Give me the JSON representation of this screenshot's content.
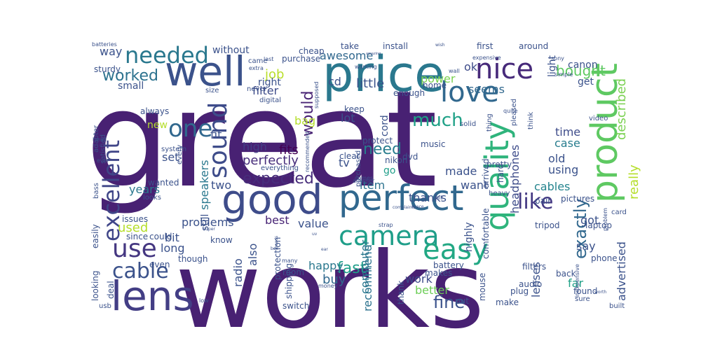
{
  "word_cloud": {
    "colors": [
      "#482173",
      "#443a83",
      "#3e4c8a",
      "#31688e",
      "#26828e",
      "#1f9e89",
      "#35b779",
      "#6ece58",
      "#b5de2b",
      "#fde725"
    ],
    "words": [
      {
        "text": "great",
        "color": "#482173"
      },
      {
        "text": "works",
        "color": "#482173"
      },
      {
        "text": "good",
        "color": "#3e4c8a"
      },
      {
        "text": "price",
        "color": "#2a788e"
      },
      {
        "text": "well",
        "color": "#3b528b"
      },
      {
        "text": "product",
        "color": "#5ec962"
      },
      {
        "text": "quality",
        "color": "#2fb47c"
      },
      {
        "text": "perfect",
        "color": "#31688e"
      },
      {
        "text": "lens",
        "color": "#433e85"
      },
      {
        "text": "nice",
        "color": "#472a7a"
      },
      {
        "text": "camera",
        "color": "#1f9e89"
      },
      {
        "text": "easy",
        "color": "#22a884"
      },
      {
        "text": "love",
        "color": "#31688e"
      },
      {
        "text": "needed",
        "color": "#2a788e"
      },
      {
        "text": "excellent",
        "color": "#404688"
      },
      {
        "text": "sound",
        "color": "#3e4c8a"
      },
      {
        "text": "one",
        "color": "#31688e"
      },
      {
        "text": "like",
        "color": "#443983"
      },
      {
        "text": "use",
        "color": "#453781"
      },
      {
        "text": "cable",
        "color": "#3b528b"
      },
      {
        "text": "worked",
        "color": "#2c728e"
      },
      {
        "text": "much",
        "color": "#1fa187"
      },
      {
        "text": "expected",
        "color": "#472d7b"
      },
      {
        "text": "bought",
        "color": "#5ec962"
      },
      {
        "text": "exactly",
        "color": "#31688e"
      },
      {
        "text": "fine",
        "color": "#3b528b"
      },
      {
        "text": "fast",
        "color": "#1f9e89"
      },
      {
        "text": "need",
        "color": "#287d8e"
      },
      {
        "text": "would",
        "color": "#482374"
      },
      {
        "text": "described",
        "color": "#7ad151"
      },
      {
        "text": "really",
        "color": "#b5de2b"
      },
      {
        "text": "advertised",
        "color": "#3b528b"
      },
      {
        "text": "recommend",
        "color": "#2c728e"
      },
      {
        "text": "computer",
        "color": "#2a788e"
      },
      {
        "text": "headphones",
        "color": "#3e4c8a"
      },
      {
        "text": "lenses",
        "color": "#3b528b"
      },
      {
        "text": "speakers",
        "color": "#2a788e"
      },
      {
        "text": "fits",
        "color": "#440154"
      },
      {
        "text": "perfectly",
        "color": "#472d7b"
      },
      {
        "text": "high",
        "color": "#433e85"
      },
      {
        "text": "filter",
        "color": "#3e4c8a"
      },
      {
        "text": "little",
        "color": "#3b528b"
      },
      {
        "text": "job",
        "color": "#b8de29"
      },
      {
        "text": "using",
        "color": "#3b528b"
      },
      {
        "text": "case",
        "color": "#287d8e"
      },
      {
        "text": "time",
        "color": "#3e4c8a"
      },
      {
        "text": "made",
        "color": "#3b528b"
      },
      {
        "text": "cables",
        "color": "#25848e"
      },
      {
        "text": "used",
        "color": "#b5de2b"
      },
      {
        "text": "years",
        "color": "#2a788e"
      },
      {
        "text": "long",
        "color": "#3b528b"
      },
      {
        "text": "best",
        "color": "#482475"
      },
      {
        "text": "value",
        "color": "#3b528b"
      },
      {
        "text": "buy",
        "color": "#31688e"
      },
      {
        "text": "work",
        "color": "#3e4c8a"
      },
      {
        "text": "better",
        "color": "#6ece58"
      },
      {
        "text": "happy",
        "color": "#2a788e"
      },
      {
        "text": "thanks",
        "color": "#3b528b"
      },
      {
        "text": "want",
        "color": "#3b528b"
      },
      {
        "text": "item",
        "color": "#2c728e"
      },
      {
        "text": "got",
        "color": "#3b528b"
      },
      {
        "text": "say",
        "color": "#3b528b"
      },
      {
        "text": "far",
        "color": "#1fa187"
      },
      {
        "text": "old",
        "color": "#3b528b"
      },
      {
        "text": "fit",
        "color": "#3b528b"
      },
      {
        "text": "problems",
        "color": "#3b528b"
      },
      {
        "text": "small",
        "color": "#3b528b"
      },
      {
        "text": "seems",
        "color": "#31688e"
      },
      {
        "text": "power",
        "color": "#7ad151"
      },
      {
        "text": "awesome",
        "color": "#31688e"
      },
      {
        "text": "ok",
        "color": "#3e4c8a"
      },
      {
        "text": "tv",
        "color": "#3b528b"
      },
      {
        "text": "lot",
        "color": "#3b528b"
      },
      {
        "text": "bit",
        "color": "#3b528b"
      },
      {
        "text": "set",
        "color": "#3b528b"
      },
      {
        "text": "new",
        "color": "#b5de2b"
      },
      {
        "text": "two",
        "color": "#3b528b"
      },
      {
        "text": "still",
        "color": "#3b528b"
      },
      {
        "text": "also",
        "color": "#3b528b"
      },
      {
        "text": "radio",
        "color": "#3b528b"
      },
      {
        "text": "go",
        "color": "#1f9e89"
      },
      {
        "text": "cd",
        "color": "#3b528b"
      },
      {
        "text": "bag",
        "color": "#b5de2b"
      },
      {
        "text": "cord",
        "color": "#3b528b"
      },
      {
        "text": "right",
        "color": "#3b528b"
      },
      {
        "text": "without",
        "color": "#3b528b"
      },
      {
        "text": "way",
        "color": "#3b528b"
      },
      {
        "text": "canon",
        "color": "#3b528b"
      },
      {
        "text": "get",
        "color": "#3b528b"
      },
      {
        "text": "light",
        "color": "#3b528b"
      },
      {
        "text": "highly",
        "color": "#3b528b"
      },
      {
        "text": "tripod",
        "color": "#3b528b"
      },
      {
        "text": "laptop",
        "color": "#3b528b"
      },
      {
        "text": "comfortable",
        "color": "#3b528b"
      },
      {
        "text": "battery",
        "color": "#3b528b"
      },
      {
        "text": "protection",
        "color": "#3b528b"
      },
      {
        "text": "room",
        "color": "#3b528b"
      },
      {
        "text": "mouse",
        "color": "#3b528b"
      },
      {
        "text": "audio",
        "color": "#3b528b"
      },
      {
        "text": "plug",
        "color": "#3b528b"
      },
      {
        "text": "filters",
        "color": "#3b528b"
      },
      {
        "text": "back",
        "color": "#3b528b"
      },
      {
        "text": "phone",
        "color": "#3b528b"
      },
      {
        "text": "found",
        "color": "#3b528b"
      },
      {
        "text": "issues",
        "color": "#3b528b"
      },
      {
        "text": "since",
        "color": "#3b528b"
      },
      {
        "text": "could",
        "color": "#3b528b"
      },
      {
        "text": "even",
        "color": "#3b528b"
      },
      {
        "text": "though",
        "color": "#3b528b"
      },
      {
        "text": "looking",
        "color": "#3b528b"
      },
      {
        "text": "easily",
        "color": "#3b528b"
      },
      {
        "text": "deal",
        "color": "#3b528b"
      },
      {
        "text": "switch",
        "color": "#3b528b"
      },
      {
        "text": "usb",
        "color": "#3b528b"
      },
      {
        "text": "dvd",
        "color": "#3b528b"
      },
      {
        "text": "nikon",
        "color": "#3b528b"
      },
      {
        "text": "protect",
        "color": "#3b528b"
      },
      {
        "text": "clear",
        "color": "#3b528b"
      },
      {
        "text": "keep",
        "color": "#3b528b"
      },
      {
        "text": "enough",
        "color": "#3b528b"
      },
      {
        "text": "home",
        "color": "#3b528b"
      },
      {
        "text": "music",
        "color": "#3b528b"
      },
      {
        "text": "pretty",
        "color": "#3b528b"
      },
      {
        "text": "arrived",
        "color": "#3b528b"
      },
      {
        "text": "heavy",
        "color": "#3b528b"
      },
      {
        "text": "hard",
        "color": "#3b528b"
      },
      {
        "text": "pair",
        "color": "#3b528b"
      },
      {
        "text": "pictures",
        "color": "#3b528b"
      },
      {
        "text": "card",
        "color": "#3b528b"
      },
      {
        "text": "built",
        "color": "#3b528b"
      },
      {
        "text": "sure",
        "color": "#3b528b"
      },
      {
        "text": "make",
        "color": "#3b528b"
      },
      {
        "text": "put",
        "color": "#3b528b"
      },
      {
        "text": "thank",
        "color": "#3b528b"
      },
      {
        "text": "makes",
        "color": "#3b528b"
      },
      {
        "text": "shipping",
        "color": "#3b528b"
      },
      {
        "text": "know",
        "color": "#3b528b"
      },
      {
        "text": "always",
        "color": "#3b528b"
      },
      {
        "text": "system",
        "color": "#3b528b"
      },
      {
        "text": "every",
        "color": "#3b528b"
      },
      {
        "text": "wanted",
        "color": "#3b528b"
      },
      {
        "text": "looks",
        "color": "#3b528b"
      },
      {
        "text": "bass",
        "color": "#3b528b"
      },
      {
        "text": "adapter",
        "color": "#3b528b"
      },
      {
        "text": "satisfied",
        "color": "#3b528b"
      },
      {
        "text": "ever",
        "color": "#3b528b"
      },
      {
        "text": "head",
        "color": "#3b528b"
      },
      {
        "text": "sturdy",
        "color": "#3b528b"
      },
      {
        "text": "batteries",
        "color": "#3b528b"
      },
      {
        "text": "take",
        "color": "#3b528b"
      },
      {
        "text": "install",
        "color": "#3b528b"
      },
      {
        "text": "first",
        "color": "#3b528b"
      },
      {
        "text": "around",
        "color": "#3b528b"
      },
      {
        "text": "sony",
        "color": "#3b528b"
      },
      {
        "text": "simple",
        "color": "#3b528b"
      },
      {
        "text": "purchase",
        "color": "#3b528b"
      },
      {
        "text": "cheap",
        "color": "#3b528b"
      },
      {
        "text": "came",
        "color": "#3b528b"
      },
      {
        "text": "last",
        "color": "#3b528b"
      },
      {
        "text": "extra",
        "color": "#3b528b"
      },
      {
        "text": "never",
        "color": "#3b528b"
      },
      {
        "text": "size",
        "color": "#3b528b"
      },
      {
        "text": "digital",
        "color": "#3b528b"
      },
      {
        "text": "working",
        "color": "#3b528b"
      },
      {
        "text": "supposed",
        "color": "#3b528b"
      },
      {
        "text": "wall",
        "color": "#3b528b"
      },
      {
        "text": "expensive",
        "color": "#3b528b"
      },
      {
        "text": "solid",
        "color": "#3b528b"
      },
      {
        "text": "quite",
        "color": "#3b528b"
      },
      {
        "text": "pleased",
        "color": "#3b528b"
      },
      {
        "text": "video",
        "color": "#3b528b"
      },
      {
        "text": "thing",
        "color": "#3b528b"
      },
      {
        "text": "think",
        "color": "#3b528b"
      },
      {
        "text": "recommended",
        "color": "#3b528b"
      },
      {
        "text": "purchased",
        "color": "#3b528b"
      },
      {
        "text": "everything",
        "color": "#3b528b"
      },
      {
        "text": "comes",
        "color": "#3b528b"
      },
      {
        "text": "another",
        "color": "#3b528b"
      },
      {
        "text": "unit",
        "color": "#3b528b"
      },
      {
        "text": "strap",
        "color": "#3b528b"
      },
      {
        "text": "complaints",
        "color": "#3b528b"
      },
      {
        "text": "space",
        "color": "#3b528b"
      },
      {
        "text": "needs",
        "color": "#3b528b"
      },
      {
        "text": "box",
        "color": "#3b528b"
      },
      {
        "text": "many",
        "color": "#3b528b"
      },
      {
        "text": "uv",
        "color": "#3b528b"
      },
      {
        "text": "ear",
        "color": "#3b528b"
      },
      {
        "text": "money",
        "color": "#3b528b"
      },
      {
        "text": "low",
        "color": "#3b528b"
      },
      {
        "text": "super",
        "color": "#3b528b"
      },
      {
        "text": "wish",
        "color": "#3b528b"
      },
      {
        "text": "amazing",
        "color": "#3b528b"
      },
      {
        "text": "problem",
        "color": "#3b528b"
      },
      {
        "text": "inexpensive",
        "color": "#3b528b"
      },
      {
        "text": "worth",
        "color": "#3b528b"
      }
    ]
  }
}
